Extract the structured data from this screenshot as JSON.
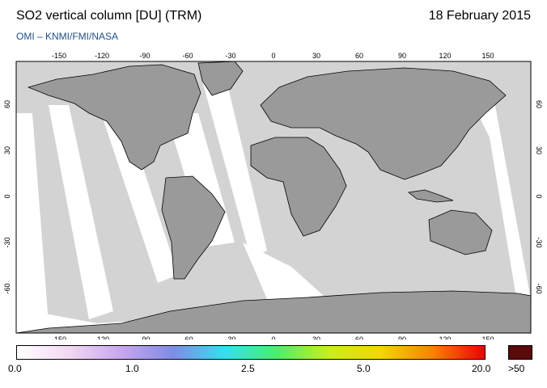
{
  "header": {
    "title": "SO2 vertical column [DU] (TRM)",
    "date": "18 February 2015",
    "credit": "OMI  –  KNMI/FMI/NASA"
  },
  "map": {
    "lon_ticks": [
      "-150",
      "-120",
      "-90",
      "-60",
      "-30",
      "0",
      "30",
      "60",
      "90",
      "120",
      "150"
    ],
    "lat_ticks": [
      "60",
      "30",
      "0",
      "-30",
      "-60"
    ],
    "colors": {
      "ocean": "#d3d3d3",
      "land": "#9a9a9a",
      "gap": "#ffffff"
    }
  },
  "colorbar": {
    "labels": [
      "0.0",
      "1.0",
      "2.5",
      "5.0",
      "20.0"
    ],
    "overflow_label": ">50",
    "gradient": [
      "#ffffff",
      "#f3d8f3",
      "#c9a6ee",
      "#7f8ce6",
      "#33e0f0",
      "#4bef6a",
      "#c8ef1d",
      "#f4d600",
      "#f78300",
      "#ef0000"
    ],
    "overflow_color": "#5a0a0a"
  }
}
